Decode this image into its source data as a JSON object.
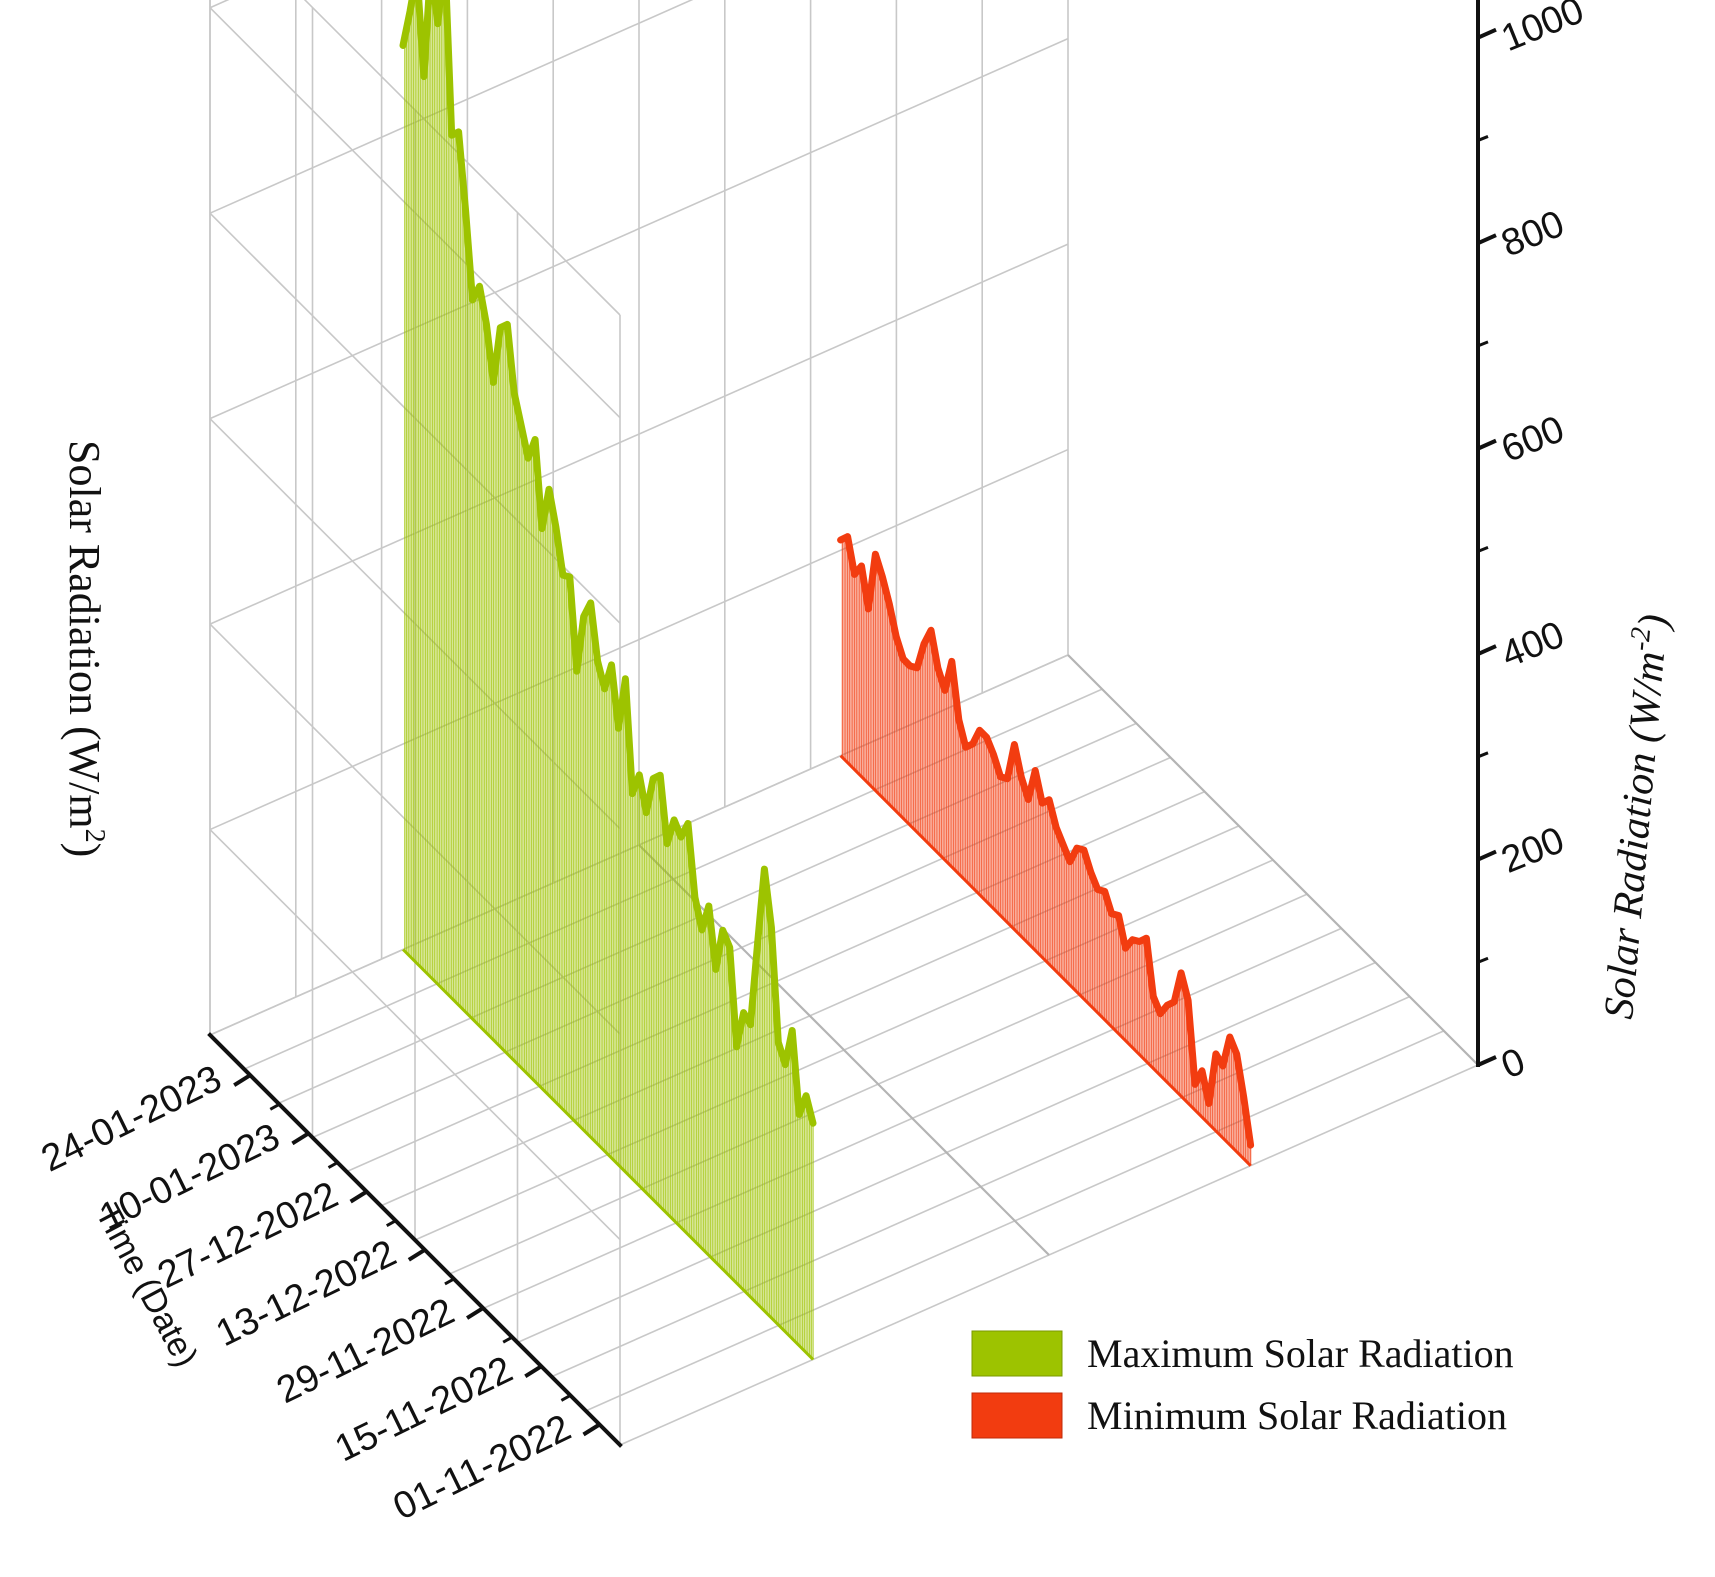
{
  "chart_data": {
    "type": "waterfall-3d-line",
    "left_axis_label": "Solar Radiation (W/m",
    "right_axis_label": "Solar Radiation (W/m",
    "unit_superscript_left": "2",
    "unit_superscript_right": "-2",
    "date_axis_label": "Time (Date)",
    "zlim": [
      0,
      1100
    ],
    "z_ticks": [
      0,
      200,
      400,
      600,
      800,
      1000
    ],
    "date_ticks": [
      "01-11-2022",
      "15-11-2022",
      "29-11-2022",
      "13-12-2022",
      "27-12-2022",
      "10-01-2023",
      "24-01-2023"
    ],
    "grid": true,
    "legend_position": "bottom-right",
    "series": [
      {
        "name": "Maximum Solar Radiation",
        "color": "#9dc300",
        "values": [
          230,
          250,
          225,
          300,
          260,
          275,
          380,
          430,
          350,
          265,
          270,
          230,
          320,
          330,
          285,
          340,
          310,
          335,
          400,
          380,
          390,
          360,
          420,
          410,
          370,
          400,
          375,
          480,
          425,
          480,
          450,
          470,
          520,
          500,
          440,
          525,
          520,
          560,
          590,
          545,
          625,
          600,
          625,
          650,
          710,
          700,
          640,
          690,
          720,
          700,
          780,
          850,
          840,
          1010,
          935,
          985,
          870,
          965,
          920,
          880
        ]
      },
      {
        "name": "Minimum Solar Radiation",
        "color": "#f23c10",
        "values": [
          20,
          60,
          95,
          105,
          70,
          75,
          20,
          45,
          25,
          100,
          120,
          85,
          75,
          60,
          70,
          120,
          110,
          105,
          90,
          115,
          110,
          125,
          120,
          130,
          145,
          140,
          120,
          130,
          140,
          160,
          150,
          175,
          140,
          155,
          180,
          140,
          135,
          150,
          160,
          160,
          140,
          130,
          150,
          200,
          165,
          180,
          210,
          190,
          160,
          155,
          155,
          170,
          195,
          215,
          230,
          170,
          205,
          190,
          220,
          210
        ]
      }
    ]
  }
}
